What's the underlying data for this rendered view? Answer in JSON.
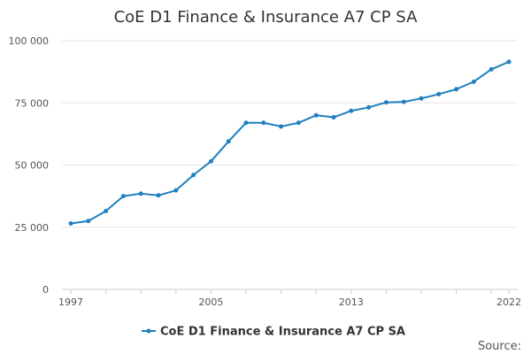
{
  "chart_data": {
    "type": "line",
    "title": "CoE D1 Finance & Insurance A7 CP SA",
    "xlabel": "",
    "ylabel": "",
    "x": [
      1997,
      1998,
      1999,
      2000,
      2001,
      2002,
      2003,
      2004,
      2005,
      2006,
      2007,
      2008,
      2009,
      2010,
      2011,
      2012,
      2013,
      2014,
      2015,
      2016,
      2017,
      2018,
      2019,
      2020,
      2021,
      2022
    ],
    "series": [
      {
        "name": "CoE D1 Finance & Insurance A7 CP SA",
        "color": "#1f7fbf",
        "values": [
          26500,
          27500,
          31500,
          37500,
          38500,
          37800,
          39800,
          46000,
          51500,
          59500,
          67000,
          67000,
          65500,
          67000,
          70000,
          69200,
          71800,
          73200,
          75200,
          75400,
          76800,
          78500,
          80500,
          83500,
          88500,
          91500
        ]
      }
    ],
    "ylim": [
      0,
      100000
    ],
    "yticks": [
      0,
      25000,
      50000,
      75000,
      100000
    ],
    "ytick_labels": [
      "0",
      "25 000",
      "50 000",
      "75 000",
      "100 000"
    ],
    "xtick_labels": [
      {
        "x": 1997,
        "label": "1997"
      },
      {
        "x": 2005,
        "label": "2005"
      },
      {
        "x": 2013,
        "label": "2013"
      },
      {
        "x": 2022,
        "label": "2022"
      }
    ],
    "grid": true,
    "legend": "bottom",
    "source_label": "Source:"
  }
}
